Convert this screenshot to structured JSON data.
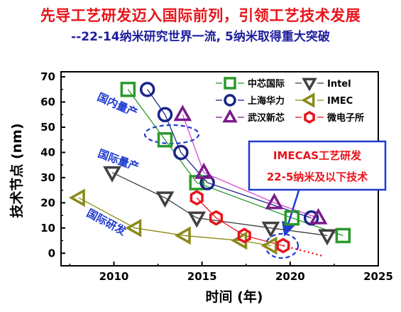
{
  "header": {
    "title": "先导工艺研发迈入国际前列，引领工艺技术发展",
    "subtitle": "--22-14纳米研究世界一流, 5纳米取得重大突破"
  },
  "colors": {
    "smic": "#2a9a2a",
    "hua": "#1a2488",
    "xin": "#7b1a8c",
    "intel": "#404040",
    "imec": "#8a8a1a",
    "ime": "#e8141b",
    "annotation": "#1f3bd0"
  },
  "annotations": {
    "domestic": "国内量产",
    "international_mass": "国际量产",
    "international_rd": "国际研发",
    "box_line1": "IMECAS工艺研发",
    "box_line2": "22-5纳米及以下技术"
  },
  "chart_data": {
    "type": "scatter",
    "title": "",
    "xlabel": "时间 (年)",
    "ylabel": "技术节点 (nm)",
    "xlim": [
      2007,
      2025
    ],
    "ylim": [
      -5,
      72
    ],
    "xticks": [
      2010,
      2015,
      2020,
      2025
    ],
    "yticks": [
      0,
      10,
      20,
      30,
      40,
      50,
      60,
      70
    ],
    "grid": false,
    "legend": "top-right",
    "series": [
      {
        "key": "smic",
        "name": "中芯国际",
        "marker": "square",
        "points": [
          [
            2010.8,
            65
          ],
          [
            2012.9,
            45
          ],
          [
            2014.7,
            28
          ],
          [
            2020.1,
            14
          ],
          [
            2023.0,
            7
          ]
        ]
      },
      {
        "key": "intel",
        "name": "Intel",
        "marker": "triangle-down",
        "points": [
          [
            2009.9,
            32
          ],
          [
            2012.9,
            22
          ],
          [
            2014.7,
            14
          ],
          [
            2018.9,
            10
          ],
          [
            2022.1,
            7
          ]
        ]
      },
      {
        "key": "hua",
        "name": "上海华力",
        "marker": "circle",
        "points": [
          [
            2011.9,
            65
          ],
          [
            2012.9,
            55
          ],
          [
            2013.8,
            40
          ],
          [
            2015.3,
            28
          ],
          [
            2021.2,
            14
          ]
        ]
      },
      {
        "key": "imec",
        "name": "IMEC",
        "marker": "triangle-left",
        "points": [
          [
            2008.0,
            22
          ],
          [
            2011.2,
            10
          ],
          [
            2014.0,
            7
          ],
          [
            2017.2,
            5
          ],
          [
            2018.9,
            3
          ]
        ]
      },
      {
        "key": "xin",
        "name": "武汉新芯",
        "marker": "triangle-up",
        "points": [
          [
            2013.9,
            55
          ],
          [
            2015.1,
            32
          ],
          [
            2019.1,
            20
          ],
          [
            2021.6,
            14
          ]
        ]
      },
      {
        "key": "ime",
        "name": "微电子所",
        "marker": "hexagon",
        "points": [
          [
            2014.7,
            22
          ],
          [
            2015.8,
            14
          ],
          [
            2017.4,
            7
          ],
          [
            2019.6,
            3
          ]
        ]
      }
    ]
  }
}
